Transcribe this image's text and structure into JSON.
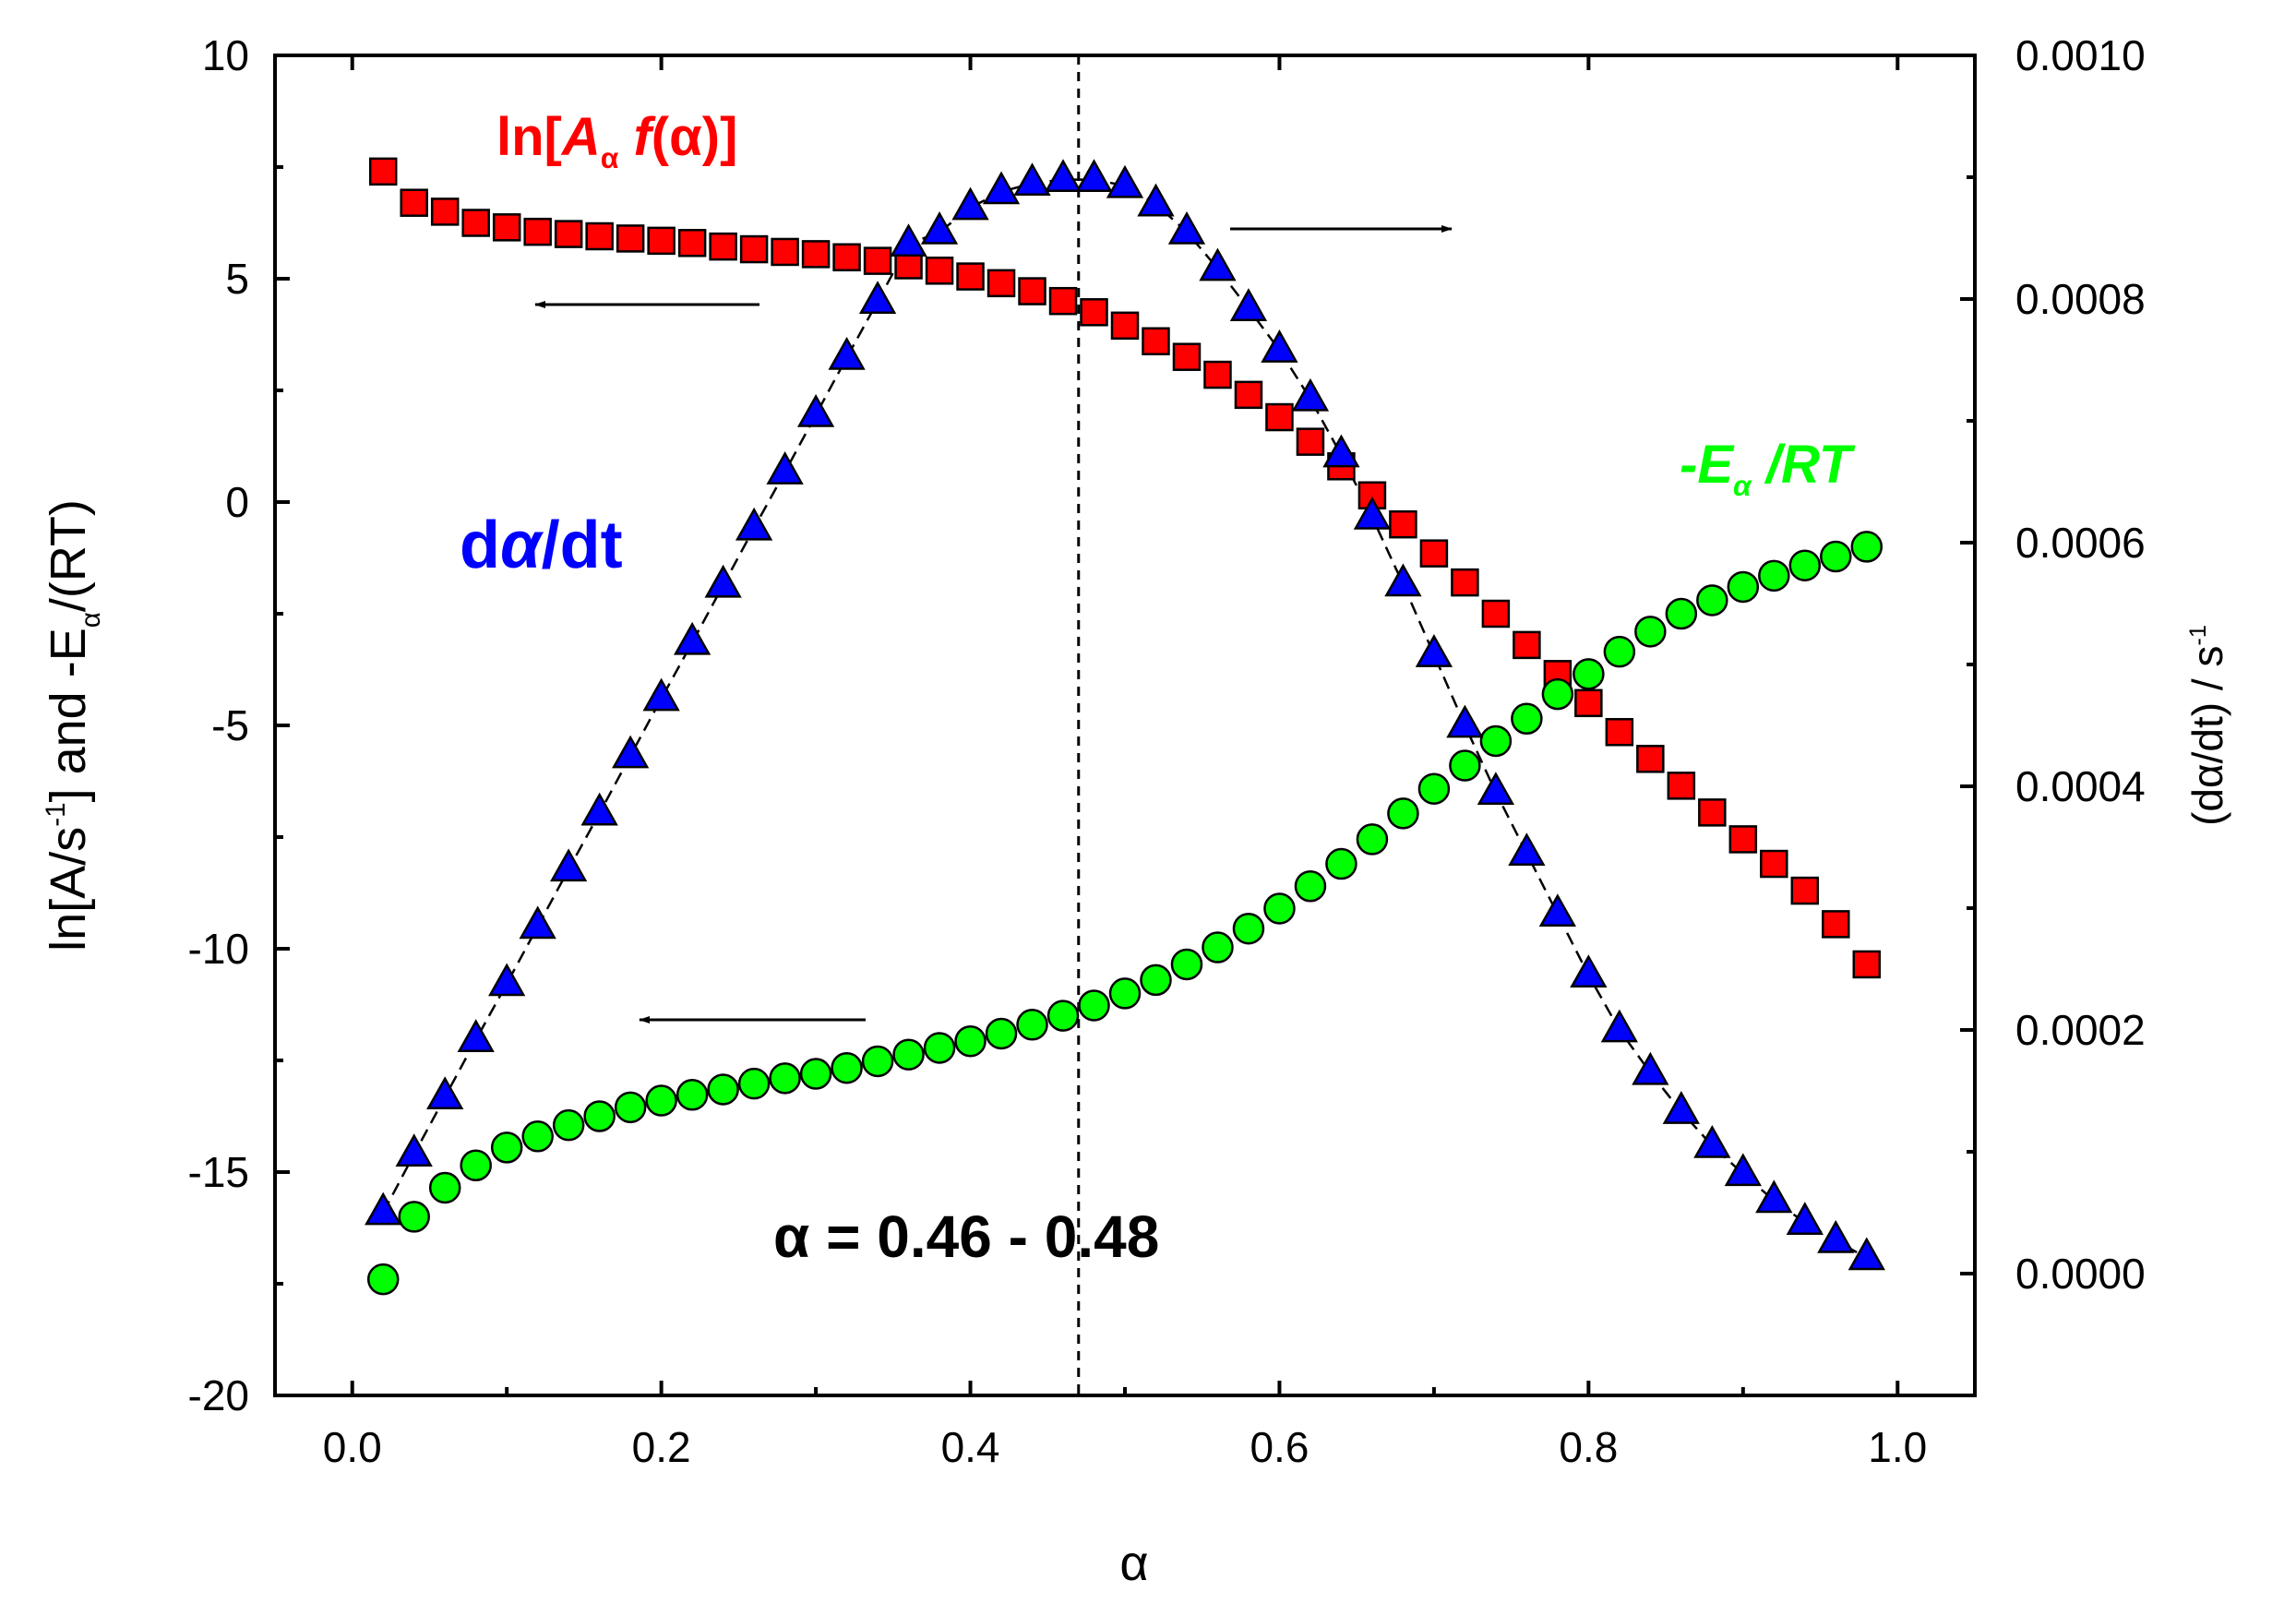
{
  "chart_data": {
    "type": "scatter",
    "x_axis": {
      "label": "α",
      "range": [
        -0.05,
        1.05
      ],
      "ticks": [
        0.0,
        0.2,
        0.4,
        0.6,
        0.8,
        1.0
      ],
      "tick_labels": [
        "0.0",
        "0.2",
        "0.4",
        "0.6",
        "0.8",
        "1.0"
      ]
    },
    "y_left": {
      "label_parts": [
        "ln[A/s",
        "-1",
        "] and -E",
        "α",
        "/(RT)"
      ],
      "range": [
        -20,
        10
      ],
      "ticks": [
        10,
        5,
        0,
        -5,
        -10,
        -15,
        -20
      ],
      "tick_labels": [
        "10",
        "5",
        "0",
        "-5",
        "-10",
        "-15",
        "-20"
      ]
    },
    "y_right": {
      "label_parts": [
        "(dα/dt) / s",
        "-1"
      ],
      "range": [
        -0.0001,
        0.001
      ],
      "ticks": [
        0.001,
        0.0008,
        0.0006,
        0.0004,
        0.0002,
        0.0
      ],
      "tick_labels": [
        "0.0010",
        "0.0008",
        "0.0006",
        "0.0004",
        "0.0002",
        "0.0000"
      ]
    },
    "x": [
      0.02,
      0.04,
      0.06,
      0.08,
      0.1,
      0.12,
      0.14,
      0.16,
      0.18,
      0.2,
      0.22,
      0.24,
      0.26,
      0.28,
      0.3,
      0.32,
      0.34,
      0.36,
      0.38,
      0.4,
      0.42,
      0.44,
      0.46,
      0.48,
      0.5,
      0.52,
      0.54,
      0.56,
      0.58,
      0.6,
      0.62,
      0.64,
      0.66,
      0.68,
      0.7,
      0.72,
      0.74,
      0.76,
      0.78,
      0.8,
      0.82,
      0.84,
      0.86,
      0.88,
      0.9,
      0.92,
      0.94,
      0.96,
      0.98
    ],
    "series": [
      {
        "name": "ln[Aα f(α)]",
        "marker": "square",
        "color": "#ff0000",
        "axis": "left",
        "values": [
          7.4,
          6.7,
          6.5,
          6.25,
          6.15,
          6.05,
          6.0,
          5.95,
          5.9,
          5.85,
          5.8,
          5.72,
          5.66,
          5.6,
          5.55,
          5.48,
          5.4,
          5.3,
          5.18,
          5.05,
          4.9,
          4.72,
          4.5,
          4.25,
          3.95,
          3.6,
          3.25,
          2.85,
          2.4,
          1.9,
          1.35,
          0.8,
          0.15,
          -0.5,
          -1.15,
          -1.8,
          -2.5,
          -3.2,
          -3.85,
          -4.5,
          -5.15,
          -5.75,
          -6.35,
          -6.95,
          -7.55,
          -8.1,
          -8.7,
          -9.45,
          -10.35
        ]
      },
      {
        "name": "-Eα/RT",
        "marker": "circle",
        "color": "#00ff00",
        "axis": "left",
        "values": [
          -17.4,
          -16.0,
          -15.35,
          -14.85,
          -14.45,
          -14.2,
          -13.95,
          -13.75,
          -13.55,
          -13.4,
          -13.27,
          -13.15,
          -13.02,
          -12.9,
          -12.8,
          -12.67,
          -12.52,
          -12.37,
          -12.22,
          -12.07,
          -11.9,
          -11.7,
          -11.5,
          -11.27,
          -11.0,
          -10.7,
          -10.35,
          -9.97,
          -9.55,
          -9.1,
          -8.6,
          -8.1,
          -7.55,
          -6.97,
          -6.42,
          -5.9,
          -5.35,
          -4.85,
          -4.3,
          -3.85,
          -3.35,
          -2.9,
          -2.5,
          -2.2,
          -1.9,
          -1.65,
          -1.42,
          -1.22,
          -1.0
        ]
      },
      {
        "name": "dα/dt",
        "marker": "triangle",
        "color": "#0000ff",
        "axis": "right",
        "values": [
          5e-05,
          9.8e-05,
          0.000145,
          0.000192,
          0.000238,
          0.000285,
          0.000332,
          0.000378,
          0.000425,
          0.000472,
          0.000518,
          0.000565,
          0.000612,
          0.000658,
          0.000705,
          0.000752,
          0.000798,
          0.000845,
          0.000855,
          0.000875,
          0.000888,
          0.000895,
          0.000898,
          0.000898,
          0.000893,
          0.000878,
          0.000855,
          0.000825,
          0.000792,
          0.000758,
          0.000718,
          0.000672,
          0.000621,
          0.000566,
          0.000508,
          0.00045,
          0.000395,
          0.000345,
          0.000295,
          0.000245,
          0.0002,
          0.000165,
          0.000133,
          0.000105,
          8.2e-05,
          6e-05,
          4.2e-05,
          2.7e-05,
          1.3e-05
        ]
      }
    ],
    "annotations": {
      "square_label": "ln[Aα f(α)]",
      "triangle_label": "dα/dt",
      "circle_label": "-Eα/RT",
      "range_label": "α = 0.46 - 0.48",
      "vline_x": 0.47
    }
  }
}
